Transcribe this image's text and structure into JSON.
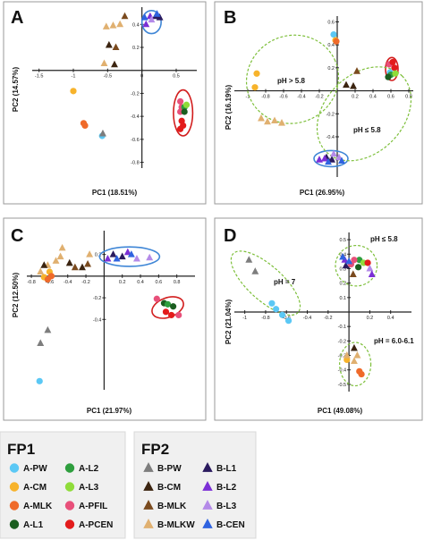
{
  "colors": {
    "A-PW": "#5bc8f5",
    "A-CM": "#f7b32b",
    "A-MLK": "#ef6a2a",
    "A-L1": "#1b5e20",
    "A-L2": "#2e9e3e",
    "A-L3": "#8fdc3a",
    "A-PFIL": "#e8507a",
    "A-PCEN": "#e31b1b",
    "B-PW": "#7d7d7d",
    "B-CM": "#3b2410",
    "B-MLK": "#7a4a1e",
    "B-MLKW": "#e0b070",
    "B-L1": "#2a1a5e",
    "B-L2": "#7b2fd6",
    "B-L3": "#b48ae8",
    "B-CEN": "#2f63e0",
    "ellipse_blue": "#3f86d6",
    "ellipse_red": "#d21e1e",
    "ellipse_green": "#7dbf3a"
  },
  "legend": {
    "fp1": {
      "title": "FP1",
      "items": [
        "A-PW",
        "A-CM",
        "A-MLK",
        "A-L1",
        "A-L2",
        "A-L3",
        "A-PFIL",
        "A-PCEN"
      ]
    },
    "fp2": {
      "title": "FP2",
      "items": [
        "B-PW",
        "B-CM",
        "B-MLK",
        "B-MLKW",
        "B-L1",
        "B-L2",
        "B-L3",
        "B-CEN"
      ]
    }
  },
  "chart_data": [
    {
      "panel": "A",
      "type": "scatter",
      "xlabel": "PC1 (18.51%)",
      "ylabel": "PC2 (14.57%)",
      "xlim": [
        -1.6,
        0.8
      ],
      "ylim": [
        -0.85,
        0.55
      ],
      "xticks": [
        -1.5,
        -1,
        -0.5,
        0,
        0.5
      ],
      "xtick_labels": [
        "-1.5",
        "-1",
        "-0.5",
        "0",
        "0.5"
      ],
      "yticks": [
        -0.8,
        -0.6,
        -0.4,
        -0.2,
        0.2,
        0.4
      ],
      "ytick_labels": [
        "-0.8",
        "-0.6",
        "-0.4",
        "-0.2",
        "0.2",
        "0.4"
      ],
      "points": [
        {
          "g": "A-PW",
          "x": -0.58,
          "y": -0.57
        },
        {
          "g": "A-CM",
          "x": -1.0,
          "y": -0.18
        },
        {
          "g": "A-MLK",
          "x": -0.85,
          "y": -0.46
        },
        {
          "g": "A-MLK",
          "x": -0.83,
          "y": -0.48
        },
        {
          "g": "A-PFIL",
          "x": 0.56,
          "y": -0.27
        },
        {
          "g": "A-PFIL",
          "x": 0.58,
          "y": -0.32
        },
        {
          "g": "A-PFIL",
          "x": 0.56,
          "y": -0.36
        },
        {
          "g": "A-L2",
          "x": 0.62,
          "y": -0.32
        },
        {
          "g": "A-L3",
          "x": 0.65,
          "y": -0.3
        },
        {
          "g": "A-L1",
          "x": 0.62,
          "y": -0.36
        },
        {
          "g": "A-PCEN",
          "x": 0.58,
          "y": -0.44
        },
        {
          "g": "A-PCEN",
          "x": 0.6,
          "y": -0.48
        },
        {
          "g": "A-PCEN",
          "x": 0.56,
          "y": -0.51
        },
        {
          "g": "B-PW",
          "x": -0.57,
          "y": -0.55
        },
        {
          "g": "B-MLKW",
          "x": -0.52,
          "y": 0.38
        },
        {
          "g": "B-MLKW",
          "x": -0.42,
          "y": 0.39
        },
        {
          "g": "B-MLKW",
          "x": -0.32,
          "y": 0.4
        },
        {
          "g": "B-MLKW",
          "x": -0.55,
          "y": 0.06
        },
        {
          "g": "B-MLK",
          "x": -0.25,
          "y": 0.47
        },
        {
          "g": "B-MLK",
          "x": -0.38,
          "y": 0.2
        },
        {
          "g": "B-CM",
          "x": -0.48,
          "y": 0.22
        },
        {
          "g": "B-CM",
          "x": -0.4,
          "y": 0.05
        },
        {
          "g": "B-L1",
          "x": 0.2,
          "y": 0.47
        },
        {
          "g": "B-L1",
          "x": 0.26,
          "y": 0.46
        },
        {
          "g": "B-L2",
          "x": 0.12,
          "y": 0.47
        },
        {
          "g": "B-L2",
          "x": 0.06,
          "y": 0.4
        },
        {
          "g": "B-L3",
          "x": 0.14,
          "y": 0.44
        },
        {
          "g": "B-CEN",
          "x": 0.04,
          "y": 0.46
        },
        {
          "g": "B-CEN",
          "x": 0.22,
          "y": 0.49
        }
      ],
      "ellipses": [
        {
          "color": "ellipse_blue",
          "cx": 0.14,
          "cy": 0.42,
          "rx": 0.14,
          "ry": 0.1,
          "rot": 0
        },
        {
          "color": "ellipse_red",
          "cx": 0.6,
          "cy": -0.37,
          "rx": 0.14,
          "ry": 0.2,
          "rot": 0
        }
      ],
      "annotations": []
    },
    {
      "panel": "B",
      "type": "scatter",
      "xlabel": "PC1 (26.95%)",
      "ylabel": "PC2 (16.19%)",
      "xlim": [
        -1.15,
        0.85
      ],
      "ylim": [
        -0.75,
        0.65
      ],
      "xticks": [
        -1,
        -0.8,
        -0.6,
        -0.4,
        -0.2,
        0.2,
        0.4,
        0.6,
        0.8
      ],
      "xtick_labels": [
        "-1",
        "-0.8",
        "-0.6",
        "-0.4",
        "-0.2",
        "0.2",
        "0.4",
        "0.6",
        "0.8"
      ],
      "yticks": [
        -0.6,
        -0.4,
        -0.2,
        0.2,
        0.4,
        0.6
      ],
      "ytick_labels": [
        "-0.6",
        "-0.4",
        "-0.2",
        "0.2",
        "0.4",
        "0.6"
      ],
      "points": [
        {
          "g": "A-PW",
          "x": -0.04,
          "y": 0.49
        },
        {
          "g": "A-CM",
          "x": -0.02,
          "y": 0.44
        },
        {
          "g": "A-MLK",
          "x": -0.01,
          "y": 0.43
        },
        {
          "g": "A-PW",
          "x": 0.59,
          "y": 0.16
        },
        {
          "g": "A-CM",
          "x": -0.9,
          "y": 0.15
        },
        {
          "g": "A-CM",
          "x": -0.92,
          "y": 0.03
        },
        {
          "g": "A-PFIL",
          "x": 0.58,
          "y": 0.23
        },
        {
          "g": "A-PCEN",
          "x": 0.62,
          "y": 0.25
        },
        {
          "g": "A-PCEN",
          "x": 0.64,
          "y": 0.2
        },
        {
          "g": "A-L2",
          "x": 0.6,
          "y": 0.14
        },
        {
          "g": "A-L3",
          "x": 0.65,
          "y": 0.15
        },
        {
          "g": "A-L1",
          "x": 0.57,
          "y": 0.12
        },
        {
          "g": "B-MLKW",
          "x": -0.85,
          "y": -0.24
        },
        {
          "g": "B-MLKW",
          "x": -0.78,
          "y": -0.27
        },
        {
          "g": "B-MLKW",
          "x": -0.7,
          "y": -0.26
        },
        {
          "g": "B-MLKW",
          "x": -0.62,
          "y": -0.28
        },
        {
          "g": "B-MLK",
          "x": 0.22,
          "y": 0.17
        },
        {
          "g": "B-CM",
          "x": 0.1,
          "y": 0.05
        },
        {
          "g": "B-CM",
          "x": 0.18,
          "y": 0.04
        },
        {
          "g": "B-L1",
          "x": -0.12,
          "y": -0.58
        },
        {
          "g": "B-L1",
          "x": -0.06,
          "y": -0.6
        },
        {
          "g": "B-L2",
          "x": -0.2,
          "y": -0.6
        },
        {
          "g": "B-L2",
          "x": -0.14,
          "y": -0.59
        },
        {
          "g": "B-L3",
          "x": -0.04,
          "y": -0.55
        },
        {
          "g": "B-L3",
          "x": 0.02,
          "y": -0.58
        },
        {
          "g": "B-CEN",
          "x": -0.1,
          "y": -0.62
        },
        {
          "g": "B-CEN",
          "x": 0.05,
          "y": -0.61
        }
      ],
      "ellipses": [
        {
          "color": "ellipse_red",
          "cx": 0.61,
          "cy": 0.19,
          "rx": 0.07,
          "ry": 0.1,
          "rot": 0
        },
        {
          "color": "ellipse_blue",
          "cx": -0.07,
          "cy": -0.59,
          "rx": 0.19,
          "ry": 0.07,
          "rot": 0
        },
        {
          "color": "ellipse_green",
          "cx": -0.5,
          "cy": 0.1,
          "rx": 0.52,
          "ry": 0.38,
          "rot": -25,
          "dashed": true
        },
        {
          "color": "ellipse_green",
          "cx": 0.3,
          "cy": -0.2,
          "rx": 0.6,
          "ry": 0.34,
          "rot": -45,
          "dashed": true
        }
      ],
      "annotations": [
        "pH > 5.8",
        "pH ≤ 5.8"
      ]
    },
    {
      "panel": "C",
      "type": "scatter",
      "xlabel": "PC1 (21.97%)",
      "ylabel": "PC2 (12.50%)",
      "xlim": [
        -0.85,
        1.0
      ],
      "ylim": [
        -1.05,
        0.42
      ],
      "xticks": [
        -0.8,
        -0.6,
        -0.4,
        -0.2,
        0.2,
        0.4,
        0.6,
        0.8
      ],
      "xtick_labels": [
        "-0.8",
        "-0.6",
        "-0.4",
        "-0.2",
        "0.2",
        "0.4",
        "0.6",
        "0.8"
      ],
      "yticks": [
        -0.4,
        -0.2,
        0.2
      ],
      "ytick_labels": [
        "-0.4",
        "-0.2",
        "0.2"
      ],
      "points": [
        {
          "g": "A-PW",
          "x": -0.71,
          "y": -0.97
        },
        {
          "g": "A-CM",
          "x": -0.66,
          "y": -0.01
        },
        {
          "g": "A-CM",
          "x": -0.6,
          "y": 0.04
        },
        {
          "g": "A-MLK",
          "x": -0.62,
          "y": -0.03
        },
        {
          "g": "A-MLK",
          "x": -0.58,
          "y": 0.0
        },
        {
          "g": "A-PFIL",
          "x": 0.58,
          "y": -0.21
        },
        {
          "g": "A-PFIL",
          "x": 0.82,
          "y": -0.36
        },
        {
          "g": "A-L1",
          "x": 0.66,
          "y": -0.25
        },
        {
          "g": "A-L2",
          "x": 0.7,
          "y": -0.26
        },
        {
          "g": "A-L1",
          "x": 0.76,
          "y": -0.28
        },
        {
          "g": "A-PCEN",
          "x": 0.68,
          "y": -0.33
        },
        {
          "g": "A-PCEN",
          "x": 0.74,
          "y": -0.36
        },
        {
          "g": "B-PW",
          "x": -0.62,
          "y": -0.5
        },
        {
          "g": "B-PW",
          "x": -0.7,
          "y": -0.62
        },
        {
          "g": "B-MLKW",
          "x": -0.7,
          "y": 0.04
        },
        {
          "g": "B-MLKW",
          "x": -0.62,
          "y": 0.1
        },
        {
          "g": "B-MLKW",
          "x": -0.53,
          "y": 0.14
        },
        {
          "g": "B-MLKW",
          "x": -0.48,
          "y": 0.18
        },
        {
          "g": "B-MLKW",
          "x": -0.46,
          "y": 0.26
        },
        {
          "g": "B-MLKW",
          "x": -0.16,
          "y": 0.2
        },
        {
          "g": "B-CM",
          "x": -0.66,
          "y": 0.1
        },
        {
          "g": "B-CM",
          "x": -0.24,
          "y": 0.08
        },
        {
          "g": "B-CM",
          "x": -0.38,
          "y": 0.12
        },
        {
          "g": "B-MLK",
          "x": -0.32,
          "y": 0.08
        },
        {
          "g": "B-MLK",
          "x": -0.18,
          "y": 0.11
        },
        {
          "g": "B-L1",
          "x": 0.1,
          "y": 0.2
        },
        {
          "g": "B-L1",
          "x": 0.2,
          "y": 0.18
        },
        {
          "g": "B-L2",
          "x": 0.26,
          "y": 0.22
        },
        {
          "g": "B-L2",
          "x": 0.04,
          "y": 0.16
        },
        {
          "g": "B-L3",
          "x": 0.36,
          "y": 0.16
        },
        {
          "g": "B-L3",
          "x": 0.5,
          "y": 0.17
        },
        {
          "g": "B-CEN",
          "x": 0.14,
          "y": 0.16
        },
        {
          "g": "B-CEN",
          "x": 0.3,
          "y": 0.2
        }
      ],
      "ellipses": [
        {
          "color": "ellipse_blue",
          "cx": 0.28,
          "cy": 0.18,
          "rx": 0.33,
          "ry": 0.09,
          "rot": 0
        },
        {
          "color": "ellipse_red",
          "cx": 0.7,
          "cy": -0.29,
          "rx": 0.18,
          "ry": 0.09,
          "rot": -20
        }
      ],
      "annotations": []
    },
    {
      "panel": "D",
      "type": "scatter",
      "xlabel": "PC1 (49.08%)",
      "ylabel": "PC2 (21.04%)",
      "xlim": [
        -1.1,
        0.6
      ],
      "ylim": [
        -0.55,
        0.55
      ],
      "xticks": [
        -1,
        -0.8,
        -0.6,
        -0.4,
        -0.2,
        0.2,
        0.4
      ],
      "xtick_labels": [
        "-1",
        "-0.8",
        "-0.6",
        "-0.4",
        "-0.2",
        "0.2",
        "0.4"
      ],
      "yticks": [
        -0.5,
        -0.4,
        -0.3,
        -0.2,
        -0.1,
        0.1,
        0.2,
        0.3,
        0.4,
        0.5
      ],
      "ytick_labels": [
        "-0.5",
        "-0.4",
        "-0.3",
        "-0.2",
        "-0.1",
        "0.1",
        "0.2",
        "0.3",
        "0.4",
        "0.5"
      ],
      "points": [
        {
          "g": "A-PW",
          "x": -0.74,
          "y": 0.06
        },
        {
          "g": "A-PW",
          "x": -0.7,
          "y": 0.02
        },
        {
          "g": "A-PW",
          "x": -0.64,
          "y": -0.02
        },
        {
          "g": "A-PW",
          "x": -0.58,
          "y": -0.06
        },
        {
          "g": "A-CM",
          "x": -0.02,
          "y": -0.33
        },
        {
          "g": "A-MLK",
          "x": 0.1,
          "y": -0.41
        },
        {
          "g": "A-MLK",
          "x": 0.12,
          "y": -0.43
        },
        {
          "g": "A-L2",
          "x": 0.1,
          "y": 0.36
        },
        {
          "g": "A-L3",
          "x": 0.14,
          "y": 0.34
        },
        {
          "g": "A-L1",
          "x": 0.09,
          "y": 0.31
        },
        {
          "g": "A-PFIL",
          "x": 0.05,
          "y": 0.36
        },
        {
          "g": "A-PFIL",
          "x": 0.02,
          "y": 0.33
        },
        {
          "g": "A-PCEN",
          "x": 0.18,
          "y": 0.34
        },
        {
          "g": "B-PW",
          "x": -0.96,
          "y": 0.36
        },
        {
          "g": "B-PW",
          "x": -0.9,
          "y": 0.28
        },
        {
          "g": "B-MLKW",
          "x": -0.02,
          "y": -0.3
        },
        {
          "g": "B-MLKW",
          "x": 0.05,
          "y": -0.34
        },
        {
          "g": "B-MLKW",
          "x": 0.08,
          "y": -0.3
        },
        {
          "g": "B-CM",
          "x": 0.05,
          "y": -0.25
        },
        {
          "g": "B-MLK",
          "x": 0.04,
          "y": 0.26
        },
        {
          "g": "B-L1",
          "x": -0.03,
          "y": 0.32
        },
        {
          "g": "B-L2",
          "x": -0.04,
          "y": 0.36
        },
        {
          "g": "B-L3",
          "x": 0.2,
          "y": 0.3
        },
        {
          "g": "B-L2",
          "x": 0.22,
          "y": 0.26
        },
        {
          "g": "B-CEN",
          "x": -0.06,
          "y": 0.38
        },
        {
          "g": "B-CEN",
          "x": 0.0,
          "y": 0.35
        }
      ],
      "ellipses": [
        {
          "color": "ellipse_green",
          "cx": -0.8,
          "cy": 0.2,
          "rx": 0.42,
          "ry": 0.12,
          "rot": 42,
          "dashed": true
        },
        {
          "color": "ellipse_green",
          "cx": 0.07,
          "cy": 0.32,
          "rx": 0.2,
          "ry": 0.14,
          "rot": 0,
          "dashed": true
        },
        {
          "color": "ellipse_green",
          "cx": 0.06,
          "cy": -0.36,
          "rx": 0.15,
          "ry": 0.15,
          "rot": 0,
          "dashed": true
        }
      ],
      "annotations": [
        "pH ≤ 5.8",
        "pH = 7",
        "pH = 6.0-6.1"
      ]
    }
  ]
}
